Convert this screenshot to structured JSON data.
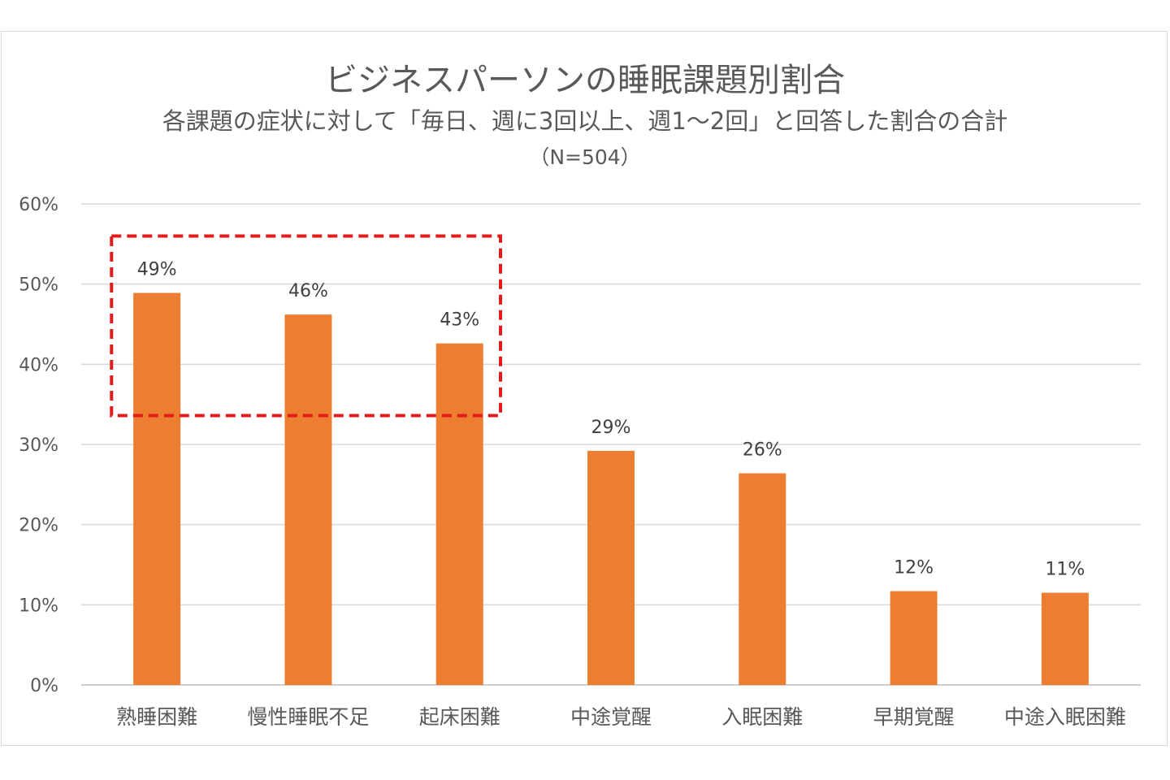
{
  "chart_data": {
    "type": "bar",
    "title": "ビジネスパーソンの睡眠課題別割合",
    "subtitle": "各課題の症状に対して「毎日、週に3回以上、週1〜2回」と回答した割合の合計",
    "note": "（N=504）",
    "categories": [
      "熟睡困難",
      "慢性睡眠不足",
      "起床困難",
      "中途覚醒",
      "入眠困難",
      "早期覚醒",
      "中途入眠困難"
    ],
    "values": [
      49,
      46,
      43,
      29,
      26,
      12,
      11
    ],
    "value_labels": [
      "49%",
      "46%",
      "43%",
      "29%",
      "26%",
      "12%",
      "11%"
    ],
    "precise_values": [
      48.9,
      46.2,
      42.6,
      29.2,
      26.4,
      11.7,
      11.5
    ],
    "yticks": [
      "0%",
      "10%",
      "20%",
      "30%",
      "40%",
      "50%",
      "60%"
    ],
    "ylim": [
      0,
      60
    ],
    "xlabel": "",
    "ylabel": "",
    "grid": true,
    "legend": "none",
    "bar_color": "#ED7D31",
    "highlight": {
      "from_category": 0,
      "to_category": 2,
      "y_range": [
        33.6,
        56
      ],
      "color": "#E31B1B",
      "style": "dashed"
    }
  }
}
